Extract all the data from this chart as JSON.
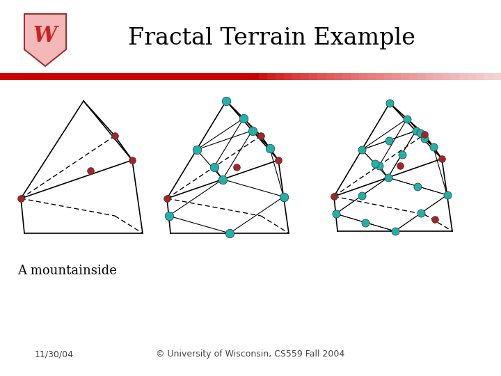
{
  "title": "Fractal Terrain Example",
  "subtitle": "A mountainside",
  "date": "11/30/04",
  "copyright": "© University of Wisconsin, CS559 Fall 2004",
  "bg_color": "#ffffff",
  "title_font": "DejaVu Serif",
  "title_fontsize": 24,
  "teal_dot": "#20b2aa",
  "red_dot": "#aa2222",
  "dot_outline": "#000000",
  "line_color": "#000000",
  "bar_red": "#cc0000",
  "footer_color": "#444444",
  "footer_fontsize": 9,
  "subtitle_fontsize": 13
}
